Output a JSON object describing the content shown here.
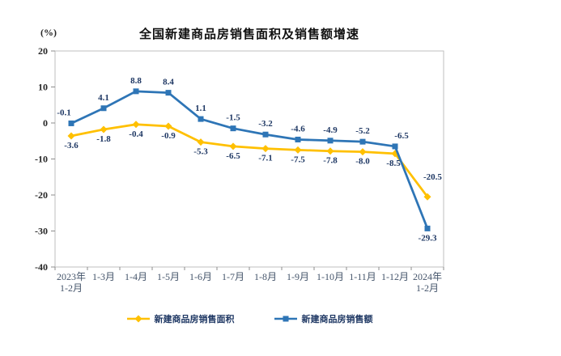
{
  "title": "全国新建商品房销售面积及销售额增速",
  "unit_label": "(%)",
  "chart_data": {
    "type": "line",
    "categories": [
      "2023年\n1-2月",
      "1-3月",
      "1-4月",
      "1-5月",
      "1-6月",
      "1-7月",
      "1-8月",
      "1-9月",
      "1-10月",
      "1-11月",
      "1-12月",
      "2024年\n1-2月"
    ],
    "series": [
      {
        "name": "新建商品房销售面积",
        "color": "#FFC000",
        "marker": "diamond",
        "label_position": "below",
        "values": [
          -3.6,
          -1.8,
          -0.4,
          -0.9,
          -5.3,
          -6.5,
          -7.1,
          -7.5,
          -7.8,
          -8.0,
          -8.5,
          -20.5
        ],
        "labels": [
          "-3.6",
          "-1.8",
          "-0.4",
          "-0.9",
          "-5.3",
          "-6.5",
          "-7.1",
          "-7.5",
          "-7.8",
          "-8.0",
          "-8.5",
          "-20.5"
        ]
      },
      {
        "name": "新建商品房销售额",
        "color": "#2E75B6",
        "marker": "square",
        "label_position": "above",
        "values": [
          -0.1,
          4.1,
          8.8,
          8.4,
          1.1,
          -1.5,
          -3.2,
          -4.6,
          -4.9,
          -5.2,
          -6.5,
          -29.3
        ],
        "labels": [
          "-0.1",
          "4.1",
          "8.8",
          "8.4",
          "1.1",
          "-1.5",
          "-3.2",
          "-4.6",
          "-4.9",
          "-5.2",
          "-6.5",
          "-29.3"
        ]
      }
    ],
    "ylim": [
      -40,
      20
    ],
    "ytick_step": 10,
    "ytick_labels": [
      "20",
      "10",
      "0",
      "-10",
      "-20",
      "-30",
      "-40"
    ],
    "grid": false,
    "legend_position": "bottom",
    "label_color": "#1F3864",
    "axis_color": "#BFBFBF",
    "tick_color": "#8C8C8C",
    "x_label_color": "#44546A",
    "y_label_color": "#262626",
    "label_overrides": [
      {
        "series": 0,
        "point": 10,
        "dx": -2
      },
      {
        "series": 0,
        "point": 11,
        "dx": -5,
        "dy": -21,
        "anchor": "start"
      },
      {
        "series": 1,
        "point": 0,
        "dx": -9
      },
      {
        "series": 1,
        "point": 10,
        "dx": 8
      },
      {
        "series": 1,
        "point": 11,
        "position": "below",
        "dy": 15
      }
    ]
  }
}
